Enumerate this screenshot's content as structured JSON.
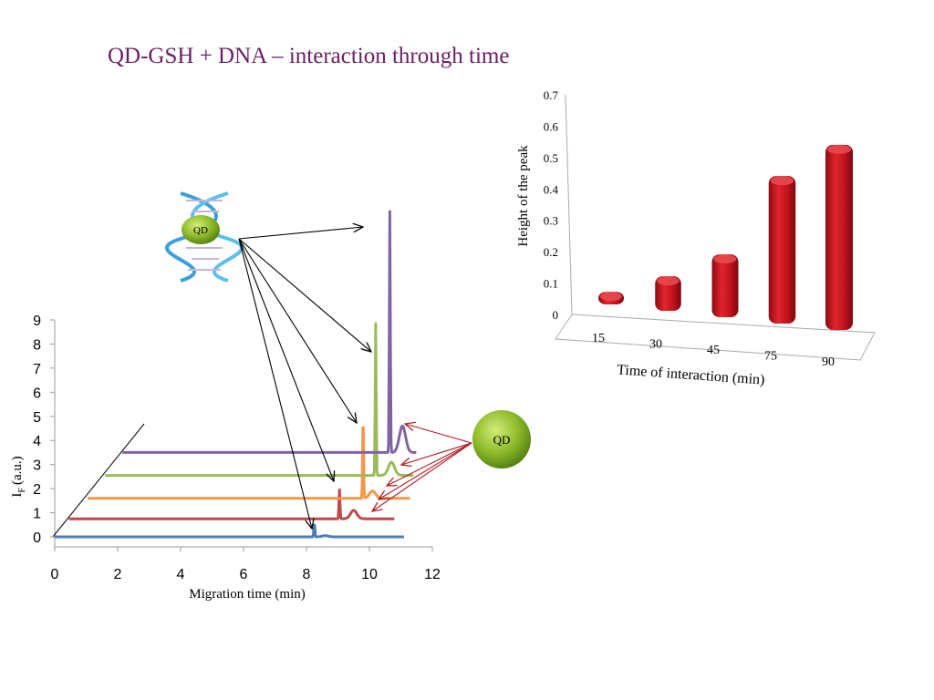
{
  "title": "QD-GSH + DNA – interaction through time",
  "qd_label": "QD",
  "colors": {
    "title": "#6b1f63",
    "series": [
      "#4a7ebb",
      "#be4b48",
      "#f79646",
      "#9bbb59",
      "#8064a2"
    ],
    "bar": "#c0121c",
    "qd_fill": "#8dbb2a"
  },
  "chart_data": [
    {
      "type": "line",
      "title": "",
      "xlabel": "Migration time (min)",
      "ylabel_main": "I",
      "ylabel_sub": "F",
      "ylabel_unit": "(a.u.)",
      "xlim": [
        0,
        12
      ],
      "ylim": [
        0,
        9
      ],
      "x_ticks": [
        "0",
        "2",
        "4",
        "6",
        "8",
        "10",
        "12"
      ],
      "y_ticks": [
        "0",
        "1",
        "2",
        "3",
        "4",
        "5",
        "6",
        "7",
        "8",
        "9"
      ],
      "series": [
        {
          "color": "#4a7ebb",
          "baseline": 0.0,
          "x_start": 0.0,
          "x_end": 11.1,
          "sharp_peak_x": 8.25,
          "sharp_peak_height": 0.6,
          "qd_peak_x": 8.6,
          "qd_peak_height": 0.05
        },
        {
          "color": "#be4b48",
          "baseline": 0.75,
          "x_start": 0.45,
          "x_end": 10.8,
          "sharp_peak_x": 9.05,
          "sharp_peak_height": 1.2,
          "qd_peak_x": 9.5,
          "qd_peak_height": 0.35
        },
        {
          "color": "#f79646",
          "baseline": 1.6,
          "x_start": 1.05,
          "x_end": 11.3,
          "sharp_peak_x": 9.8,
          "sharp_peak_height": 3.6,
          "qd_peak_x": 10.1,
          "qd_peak_height": 0.3
        },
        {
          "color": "#9bbb59",
          "baseline": 2.55,
          "x_start": 1.6,
          "x_end": 11.4,
          "sharp_peak_x": 10.2,
          "sharp_peak_height": 6.3,
          "qd_peak_x": 10.7,
          "qd_peak_height": 0.55
        },
        {
          "color": "#8064a2",
          "baseline": 3.5,
          "x_start": 2.15,
          "x_end": 11.5,
          "sharp_peak_x": 10.65,
          "sharp_peak_height": 10.0,
          "qd_peak_x": 11.05,
          "qd_peak_height": 1.1
        }
      ]
    },
    {
      "type": "bar",
      "title": "",
      "xlabel": "Time of interaction (min)",
      "ylabel": "Height of the peak",
      "categories": [
        "15",
        "30",
        "45",
        "75",
        "90"
      ],
      "values": [
        0.04,
        0.11,
        0.2,
        0.47,
        0.59
      ],
      "ylim": [
        0,
        0.7
      ],
      "y_ticks": [
        "0",
        "0.1",
        "0.2",
        "0.3",
        "0.4",
        "0.5",
        "0.6",
        "0.7"
      ]
    }
  ]
}
